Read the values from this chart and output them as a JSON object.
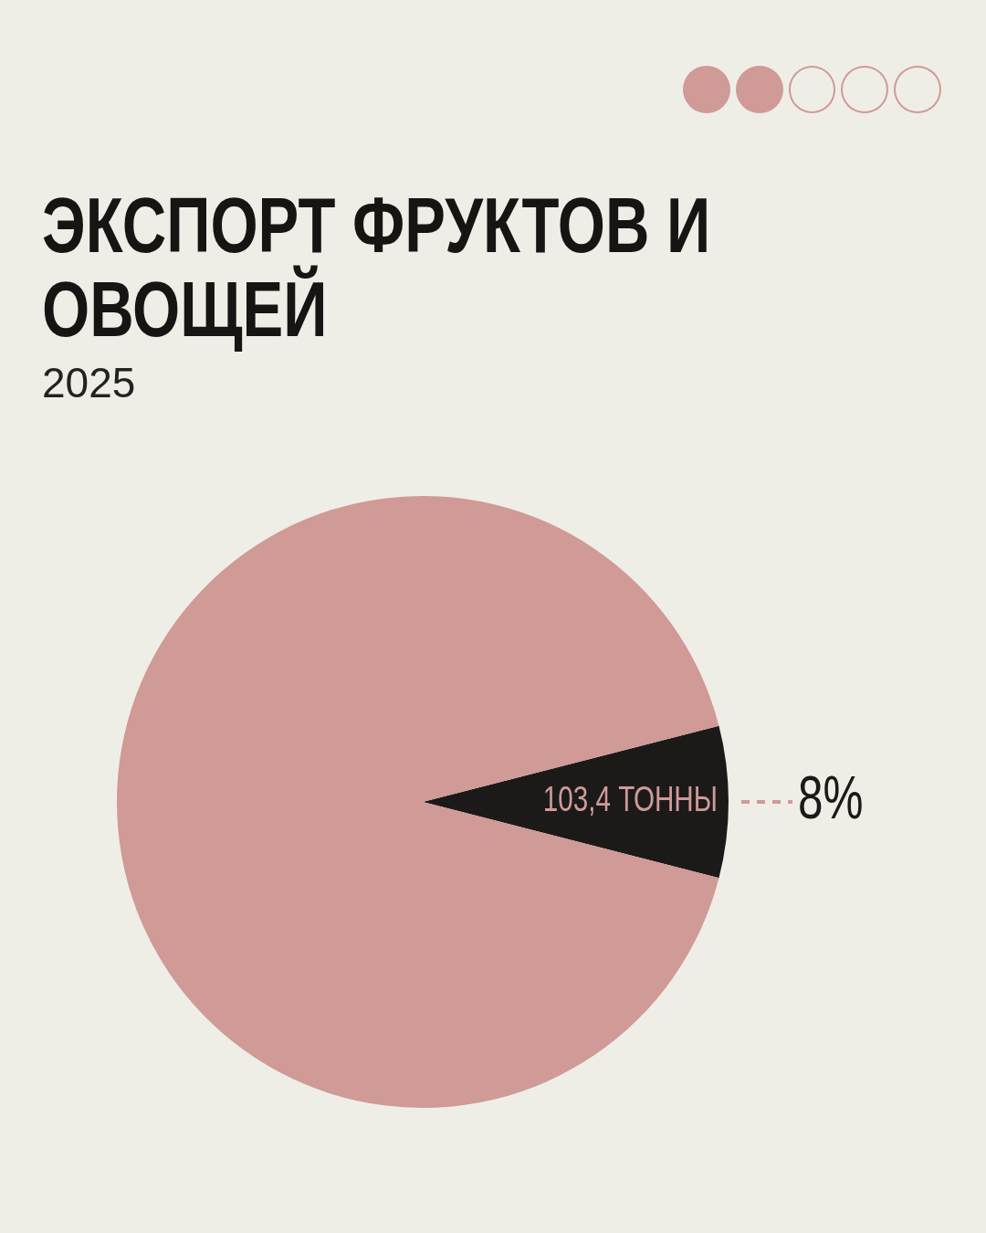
{
  "chart_data": {
    "type": "pie",
    "title": "ЭКСПОРТ ФРУКТОВ И ОВОЩЕЙ",
    "subtitle": "2025",
    "categories": [
      "103,4 ТОННЫ",
      null
    ],
    "values": [
      8,
      92
    ],
    "colors": [
      "#1b1a19",
      "#d09a97"
    ],
    "value_labels": [
      "8%",
      null
    ],
    "legend": false
  }
}
